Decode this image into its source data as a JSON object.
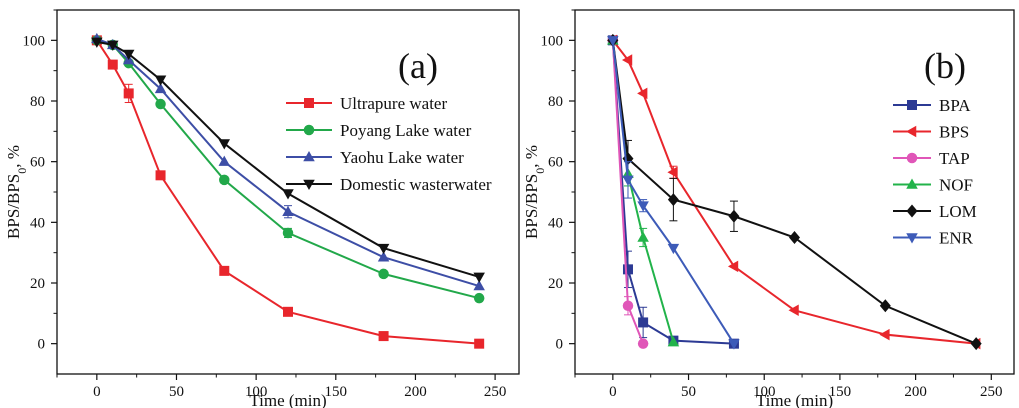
{
  "chart_data": [
    {
      "panel_label": "(a)",
      "type": "line",
      "xlabel": "Time (min)",
      "ylabel_main": "BPS/BPS",
      "ylabel_sub": "0",
      "ylabel_suffix": ", %",
      "xlim": [
        -25,
        265
      ],
      "ylim": [
        -10,
        110
      ],
      "xticks": [
        0,
        50,
        100,
        150,
        200,
        250
      ],
      "yticks": [
        0,
        20,
        40,
        60,
        80,
        100
      ],
      "grid": false,
      "legend_position": "right",
      "series": [
        {
          "name": "Ultrapure water",
          "color": "#e8262c",
          "marker": "square",
          "x": [
            0,
            10,
            20,
            40,
            80,
            120,
            180,
            240
          ],
          "y": [
            100,
            92,
            82.5,
            55.5,
            24,
            10.5,
            2.5,
            0
          ],
          "err": [
            1,
            1,
            3,
            1,
            1,
            1,
            1,
            1
          ]
        },
        {
          "name": "Poyang Lake water",
          "color": "#22a84a",
          "marker": "circle",
          "x": [
            0,
            10,
            20,
            40,
            80,
            120,
            180,
            240
          ],
          "y": [
            100,
            98.5,
            92.5,
            79,
            54,
            36.5,
            23,
            15
          ],
          "err": [
            1,
            1,
            1,
            1,
            1,
            1.5,
            1,
            1
          ]
        },
        {
          "name": "Yaohu Lake water",
          "color": "#3d4ea6",
          "marker": "triangle-up",
          "x": [
            0,
            10,
            20,
            40,
            80,
            120,
            180,
            240
          ],
          "y": [
            100.5,
            98.5,
            93.5,
            84,
            60,
            43.5,
            28.5,
            19
          ],
          "err": [
            1,
            1,
            1,
            1,
            1,
            2,
            1,
            1
          ]
        },
        {
          "name": "Domestic wasterwater",
          "color": "#111111",
          "marker": "triangle-down",
          "x": [
            0,
            10,
            20,
            40,
            80,
            120,
            180,
            240
          ],
          "y": [
            99.5,
            98.5,
            95.5,
            87,
            66,
            49.5,
            31.5,
            22
          ],
          "err": [
            1,
            1,
            1,
            1,
            1,
            1,
            1,
            1
          ]
        }
      ]
    },
    {
      "panel_label": "(b)",
      "type": "line",
      "xlabel": "Time (min)",
      "ylabel_main": "BPS/BPS",
      "ylabel_sub": "0",
      "ylabel_suffix": ", %",
      "xlim": [
        -25,
        265
      ],
      "ylim": [
        -10,
        110
      ],
      "xticks": [
        0,
        50,
        100,
        150,
        200,
        250
      ],
      "yticks": [
        0,
        20,
        40,
        60,
        80,
        100
      ],
      "grid": false,
      "legend_position": "right",
      "series": [
        {
          "name": "BPA",
          "color": "#2c3a94",
          "marker": "square",
          "x": [
            0,
            10,
            20,
            40,
            80
          ],
          "y": [
            100,
            24.5,
            7,
            1,
            0
          ],
          "err": [
            1,
            6,
            5,
            1,
            1
          ]
        },
        {
          "name": "BPS",
          "color": "#e8262c",
          "marker": "triangle-left",
          "x": [
            0,
            10,
            20,
            40,
            80,
            120,
            180,
            240
          ],
          "y": [
            100,
            93.5,
            82.5,
            56.5,
            25.5,
            11,
            3,
            0
          ],
          "err": [
            1,
            1,
            1,
            2,
            1,
            1,
            1,
            1
          ]
        },
        {
          "name": "TAP",
          "color": "#e056b8",
          "marker": "circle",
          "x": [
            0,
            10,
            20
          ],
          "y": [
            100,
            12.5,
            0
          ],
          "err": [
            1,
            3,
            1
          ]
        },
        {
          "name": "NOF",
          "color": "#22b34a",
          "marker": "triangle-up",
          "x": [
            0,
            10,
            20,
            40
          ],
          "y": [
            100,
            56,
            35,
            0.5
          ],
          "err": [
            1,
            4,
            3,
            1
          ]
        },
        {
          "name": "LOM",
          "color": "#111111",
          "marker": "diamond",
          "x": [
            0,
            10,
            40,
            80,
            120,
            180,
            240
          ],
          "y": [
            100,
            61,
            47.5,
            42,
            35,
            12.5,
            0
          ],
          "err": [
            1,
            6,
            7,
            5,
            1,
            1,
            1
          ]
        },
        {
          "name": "ENR",
          "color": "#3d5bb8",
          "marker": "triangle-down",
          "x": [
            0,
            10,
            20,
            40,
            80
          ],
          "y": [
            100,
            54,
            45.5,
            31.5,
            0
          ],
          "err": [
            1,
            6,
            2,
            1,
            1
          ]
        }
      ]
    }
  ]
}
